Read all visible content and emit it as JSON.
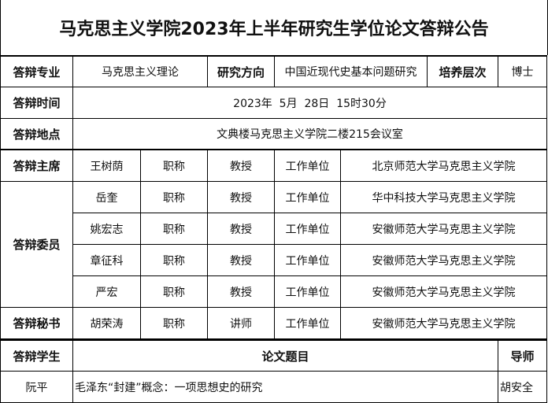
{
  "title": "马克思主义学院2023年上半年研究生学位论文答辩公告",
  "major": {
    "label": "答辩专业",
    "value": "马克思主义理论",
    "direction_label": "研究方向",
    "direction": "中国近现代史基本问题研究",
    "level_label": "培养层次",
    "level": "博士"
  },
  "time": {
    "label": "答辩时间",
    "value": "2023年  5月  28日  15时30分"
  },
  "place": {
    "label": "答辩地点",
    "value": "文典楼马克思主义学院二楼215会议室"
  },
  "chair": {
    "label": "答辩主席",
    "name": "王树荫",
    "title_label": "职称",
    "title": "教授",
    "unit_label": "工作单位",
    "unit": "北京师范大学马克思主义学院"
  },
  "committee": {
    "label": "答辩委员",
    "members": [
      {
        "name": "岳奎",
        "title_label": "职称",
        "title": "教授",
        "unit_label": "工作单位",
        "unit": "华中科技大学马克思主义学院"
      },
      {
        "name": "姚宏志",
        "title_label": "职称",
        "title": "教授",
        "unit_label": "工作单位",
        "unit": "安徽师范大学马克思主义学院"
      },
      {
        "name": "章征科",
        "title_label": "职称",
        "title": "教授",
        "unit_label": "工作单位",
        "unit": "安徽师范大学马克思主义学院"
      },
      {
        "name": "严宏",
        "title_label": "职称",
        "title": "教授",
        "unit_label": "工作单位",
        "unit": "安徽师范大学马克思主义学院"
      }
    ]
  },
  "secretary": {
    "label": "答辩秘书",
    "name": "胡荣涛",
    "title_label": "职称",
    "title": "讲师",
    "unit_label": "工作单位",
    "unit": "安徽师范大学马克思主义学院"
  },
  "students": {
    "headers": [
      "答辩学生",
      "论文题目",
      "导师"
    ],
    "rows": [
      {
        "student": "阮平",
        "thesis": "毛泽东“封建”概念：一项思想史的研究",
        "advisor": "胡安全"
      }
    ]
  }
}
